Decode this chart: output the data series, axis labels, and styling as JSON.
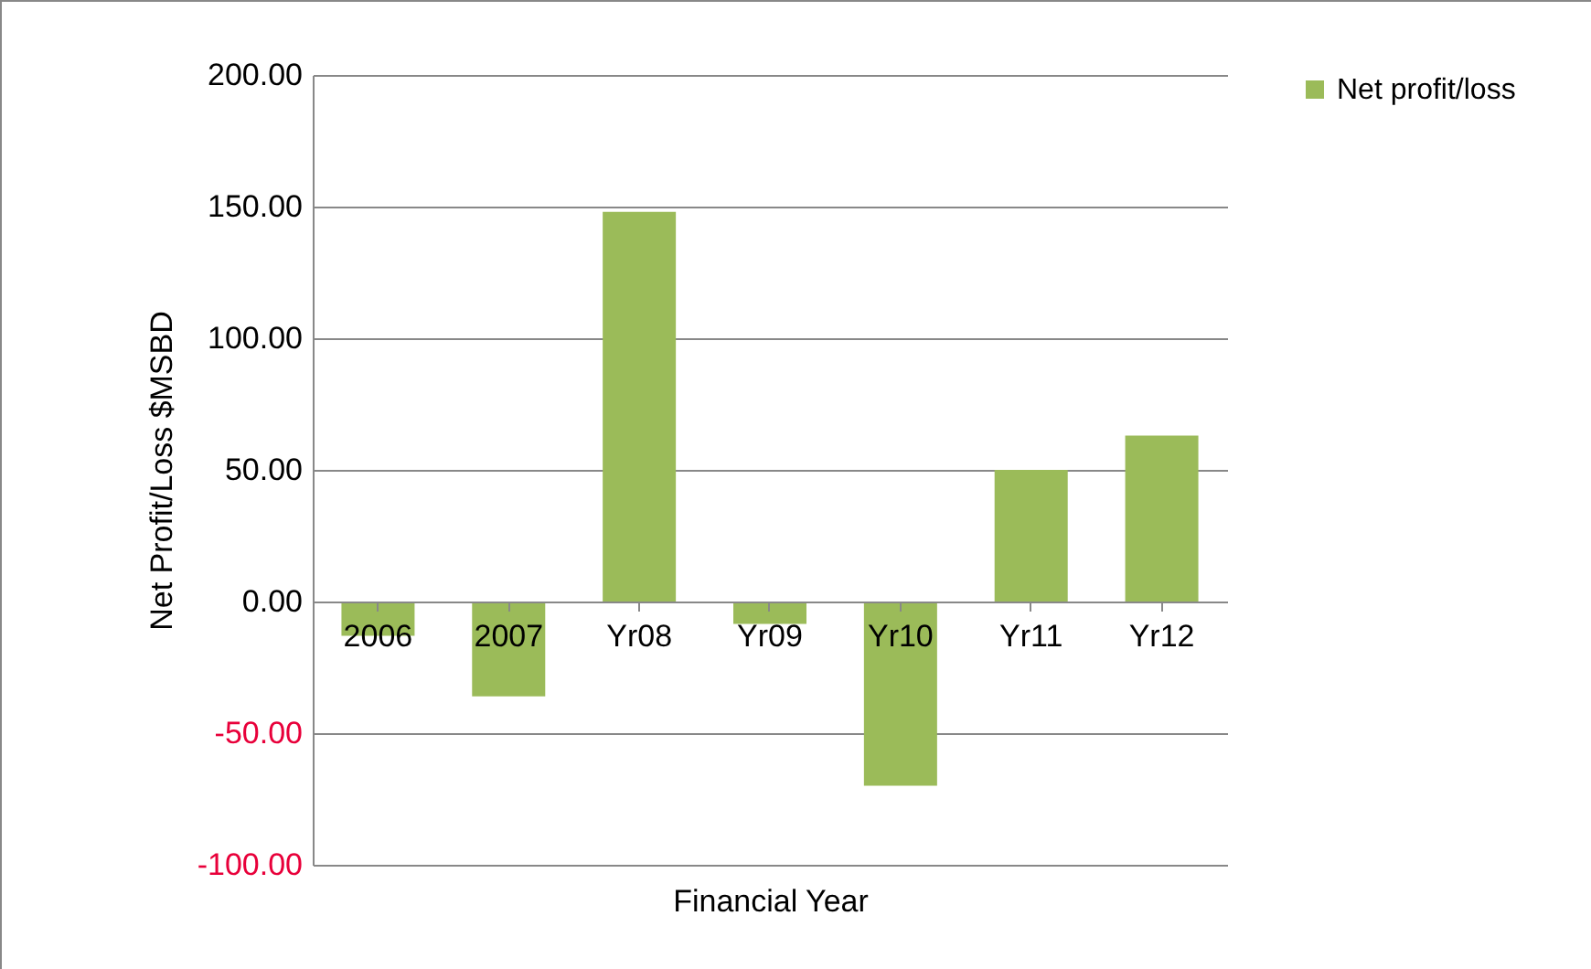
{
  "chart_data": {
    "type": "bar",
    "xlabel": "Financial Year",
    "ylabel": "Net Profit/Loss $MSBD",
    "categories": [
      "2006",
      "2007",
      "Yr08",
      "Yr09",
      "Yr10",
      "Yr11",
      "Yr12"
    ],
    "series": [
      {
        "name": "Net profit/loss",
        "color": "#9bbb59",
        "values": [
          -13,
          -36,
          148,
          -8.5,
          -70,
          50,
          63
        ]
      }
    ],
    "ylim": [
      -100,
      200
    ],
    "yticks": [
      {
        "value": -100,
        "label": "-100.00"
      },
      {
        "value": -50,
        "label": "-50.00"
      },
      {
        "value": 0,
        "label": "0.00"
      },
      {
        "value": 50,
        "label": "50.00"
      },
      {
        "value": 100,
        "label": "100.00"
      },
      {
        "value": 150,
        "label": "150.00"
      },
      {
        "value": 200,
        "label": "200.00"
      }
    ],
    "grid": "y",
    "legend": "right"
  }
}
